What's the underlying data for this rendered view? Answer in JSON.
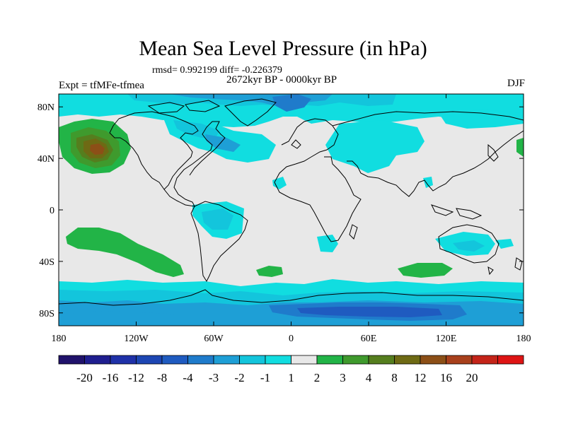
{
  "title": "Mean Sea Level Pressure (in hPa)",
  "stats": "rmsd= 0.992199 diff= -0.226379",
  "experiment": "Expt = tfMFe-tfmea",
  "period": "2672kyr BP - 0000kyr BP",
  "season": "DJF",
  "map": {
    "lat_labels": [
      "80N",
      "40N",
      "0",
      "40S",
      "80S"
    ],
    "lat_values": [
      80,
      40,
      0,
      -40,
      -80
    ],
    "lon_labels": [
      "180",
      "120W",
      "60W",
      "0",
      "60E",
      "120E",
      "180"
    ],
    "lon_values": [
      -180,
      -120,
      -60,
      0,
      60,
      120,
      180
    ],
    "lat_range": [
      -90,
      90
    ],
    "lon_range": [
      -180,
      180
    ]
  },
  "colorbar": {
    "labels": [
      "-20",
      "-16",
      "-12",
      "-8",
      "-4",
      "-3",
      "-2",
      "-1",
      "1",
      "2",
      "3",
      "4",
      "8",
      "12",
      "16",
      "20"
    ],
    "colors": [
      "#20126b",
      "#1f1e8f",
      "#1f31a8",
      "#1d46b3",
      "#1f5bc0",
      "#1f7bcb",
      "#1e9fd6",
      "#13c5dc",
      "#11dde0",
      "#e8e8e8",
      "#22b447",
      "#3f9a2d",
      "#557e1e",
      "#6e6a14",
      "#8c4f17",
      "#a8401c",
      "#c42419",
      "#de1414"
    ]
  },
  "colors": {
    "land_neutral": "#e8e8e8",
    "neg1": "#11dde0",
    "neg2": "#13c5dc",
    "neg3": "#1e9fd6",
    "neg4": "#1f7bcb",
    "neg8": "#1f5bc0",
    "pos1": "#22b447",
    "pos2": "#3f9a2d",
    "pos3": "#557e1e",
    "pos4": "#6e6a14",
    "coast": "#000000"
  }
}
